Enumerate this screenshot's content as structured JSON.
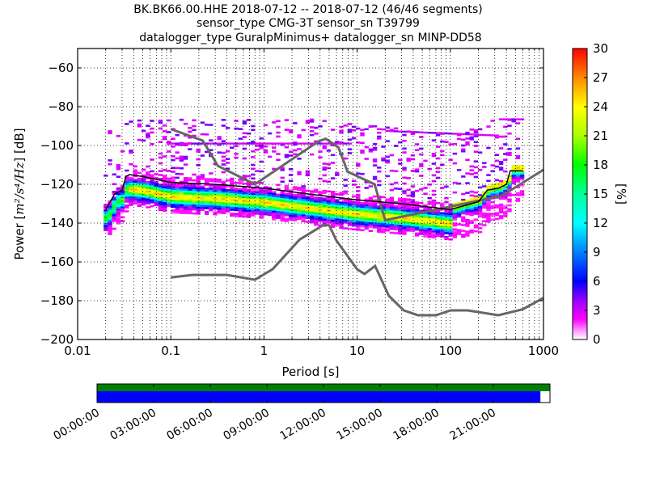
{
  "header": {
    "title_line1": "BK.BK66.00.HHE   2018-07-12 -- 2018-07-12  (46/46 segments)",
    "title_line2": "sensor_type CMG-3T sensor_sn T39799",
    "title_line3": "datalogger_type GuralpMinimus+ datalogger_sn MINP-DD58"
  },
  "chart_data": [
    {
      "type": "heatmap",
      "title": "BK.BK66.00.HHE   2018-07-12 -- 2018-07-12  (46/46 segments)",
      "xlabel": "Period [s]",
      "ylabel_prefix": "Power [",
      "ylabel_math": "m²/s⁴/Hz",
      "ylabel_suffix": "] [dB]",
      "xscale": "log",
      "xlim": [
        0.01,
        1000
      ],
      "ylim": [
        -200,
        -50
      ],
      "xticks": [
        "0.01",
        "0.1",
        "1",
        "10",
        "100",
        "1000"
      ],
      "xtick_values": [
        0.01,
        0.1,
        1,
        10,
        100,
        1000
      ],
      "yticks": [
        "−60",
        "−80",
        "−100",
        "−120",
        "−140",
        "−160",
        "−180",
        "−200"
      ],
      "ytick_values": [
        -60,
        -80,
        -100,
        -120,
        -140,
        -160,
        -180,
        -200
      ],
      "grid": true,
      "colorbar": {
        "label": "[%]",
        "range": [
          0,
          30
        ],
        "ticks": [
          "0",
          "3",
          "6",
          "9",
          "12",
          "15",
          "18",
          "21",
          "24",
          "27",
          "30"
        ],
        "tick_values": [
          0,
          3,
          6,
          9,
          12,
          15,
          18,
          21,
          24,
          27,
          30
        ]
      },
      "noise_models": [
        {
          "name": "NHNM",
          "color": "#666666",
          "x": [
            0.1,
            0.22,
            0.32,
            0.8,
            3.8,
            4.6,
            6.3,
            7.9,
            15.4,
            20,
            354.8,
            1000
          ],
          "y": [
            -91.5,
            -97.4,
            -110.5,
            -120,
            -98,
            -96.5,
            -101,
            -113.5,
            -120,
            -138.5,
            -126,
            -112.5
          ]
        },
        {
          "name": "NLNM",
          "color": "#666666",
          "x": [
            0.1,
            0.17,
            0.4,
            0.8,
            1.24,
            2.4,
            4.3,
            5,
            6,
            10,
            12,
            15.6,
            21.9,
            31.6,
            45,
            70,
            101,
            154,
            328,
            600,
            1000
          ],
          "y": [
            -168,
            -166.7,
            -166.7,
            -169.2,
            -163.7,
            -148.6,
            -141.1,
            -141.1,
            -149,
            -163.8,
            -166.2,
            -162.1,
            -177.5,
            -185,
            -187.5,
            -187.5,
            -185,
            -185,
            -187.5,
            -184.4,
            -178.6
          ]
        }
      ],
      "mode_line": {
        "name": "mode",
        "color": "#000000",
        "x": [
          0.02,
          0.025,
          0.03,
          0.033,
          0.036,
          0.05,
          0.1,
          0.3,
          1,
          3,
          10,
          30,
          100,
          200,
          250,
          330,
          400,
          440,
          600
        ],
        "y": [
          -133,
          -125,
          -123,
          -116,
          -115,
          -116,
          -119,
          -120,
          -122,
          -125,
          -128,
          -130,
          -133,
          -129,
          -123,
          -122,
          -120,
          -113,
          -113
        ]
      },
      "ppd_bands": [
        {
          "x_range": [
            0.02,
            0.035
          ],
          "y_range": [
            -138,
            -120
          ],
          "peak_pct": 20
        },
        {
          "x_range": [
            0.035,
            50
          ],
          "y_range": [
            -136,
            -124
          ],
          "peak_pct": 22
        },
        {
          "x_range": [
            10,
            110
          ],
          "y_range": [
            -142,
            -130
          ],
          "peak_pct": 26
        },
        {
          "x_range": [
            100,
            550
          ],
          "y_range": [
            -135,
            -114
          ],
          "peak_pct": 14
        },
        {
          "x_range": [
            0.03,
            600
          ],
          "y_range": [
            -125,
            -86
          ],
          "peak_pct": 4
        }
      ],
      "data_availability": {
        "time_labels": [
          "00:00:00",
          "03:00:00",
          "06:00:00",
          "09:00:00",
          "12:00:00",
          "15:00:00",
          "18:00:00",
          "21:00:00"
        ],
        "data_coverage_fraction": 1.0,
        "psd_coverage_fraction": 0.979,
        "data_color": "#008000",
        "psd_color": "#0000ff"
      }
    }
  ]
}
